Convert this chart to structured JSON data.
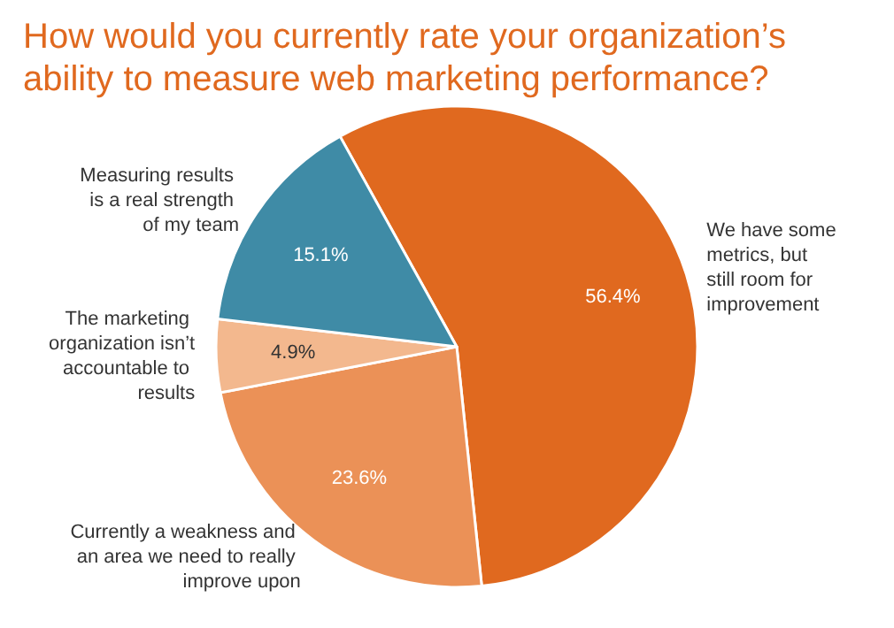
{
  "chart_data": {
    "type": "pie",
    "title": "How would you currently rate your organization’s ability to measure web marketing performance?",
    "categories": [
      "We have some metrics, but still room for improvement",
      "Currently a weakness and an area we need to really improve upon",
      "The marketing organization isn’t accountable to results",
      "Measuring results is a real strength of my team"
    ],
    "values": [
      56.4,
      23.6,
      4.9,
      15.1
    ],
    "value_labels": [
      "56.4%",
      "23.6%",
      "4.9%",
      "15.1%"
    ],
    "colors": [
      "#e0691f",
      "#eb9157",
      "#f3b88e",
      "#3f8ba6"
    ]
  }
}
